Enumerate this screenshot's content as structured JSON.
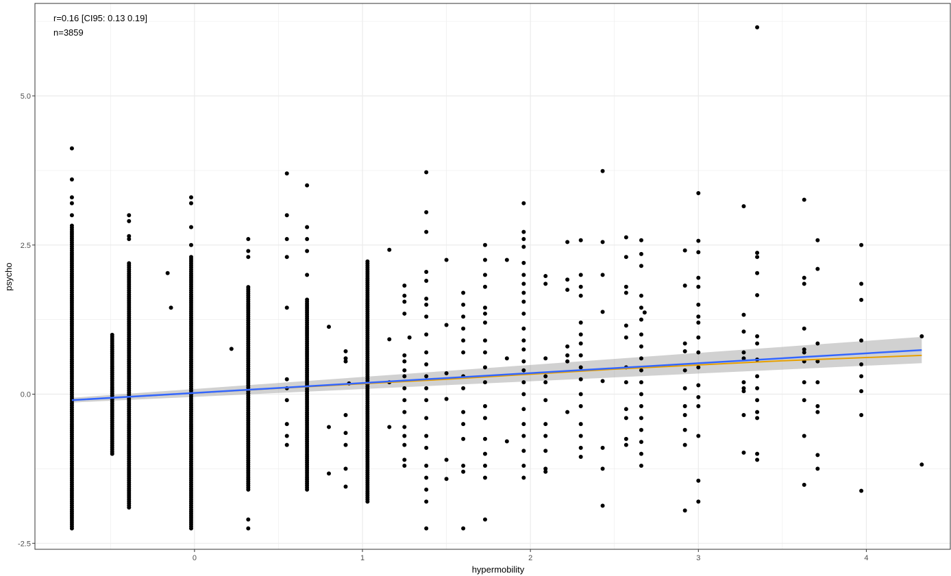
{
  "chart_data": {
    "type": "scatter",
    "xlabel": "hypermobility",
    "ylabel": "psycho",
    "xlim": [
      -0.95,
      4.5
    ],
    "ylim": [
      -2.6,
      6.55
    ],
    "x_ticks": [
      0,
      1,
      2,
      3,
      4
    ],
    "y_ticks": [
      -2.5,
      0.0,
      2.5,
      5.0
    ],
    "x_tick_labels": [
      "0",
      "1",
      "2",
      "3",
      "4"
    ],
    "y_tick_labels": [
      "-2.5",
      "0.0",
      "2.5",
      "5.0"
    ],
    "grid": true,
    "annotations": [
      "r=0.16 [CI95: 0.13 0.19]",
      "n=3859"
    ],
    "colors": {
      "points": "#000000",
      "lm_fit": "#3366ff",
      "loess_fit": "#e69f00",
      "ribbon": "#999999",
      "grid": "#ebebeb",
      "panel_border": "#333333"
    },
    "dense_columns": [
      {
        "x": -0.73,
        "y_min": -2.25,
        "y_max": 2.85,
        "extra": [
          3.0,
          3.2,
          3.3,
          3.6,
          4.12
        ]
      },
      {
        "x": -0.49,
        "y_min": -1.0,
        "y_max": 1.0,
        "extra": []
      },
      {
        "x": -0.39,
        "y_min": -1.9,
        "y_max": 2.2,
        "extra": [
          2.6,
          2.65,
          2.9,
          3.0
        ]
      },
      {
        "x": -0.02,
        "y_min": -2.25,
        "y_max": 2.3,
        "extra": [
          2.5,
          2.8,
          3.2,
          3.3
        ]
      },
      {
        "x": 0.32,
        "y_min": -1.6,
        "y_max": 1.8,
        "extra": [
          2.3,
          2.4,
          2.6,
          -2.1,
          -2.25
        ]
      },
      {
        "x": 0.67,
        "y_min": -1.6,
        "y_max": 1.6,
        "extra": [
          2.0,
          2.4,
          2.6,
          2.8,
          3.5
        ]
      },
      {
        "x": 1.03,
        "y_min": -1.8,
        "y_max": 2.25,
        "extra": []
      }
    ],
    "sparse_columns": [
      {
        "x": 0.55,
        "values": [
          3.7,
          3.0,
          2.6,
          2.3,
          1.45,
          0.25,
          0.1,
          -0.1,
          -0.5,
          -0.7,
          -0.85
        ]
      },
      {
        "x": 0.9,
        "values": [
          0.72,
          0.6,
          0.55,
          -0.35,
          -0.65,
          -0.85,
          -1.25,
          -1.55
        ]
      },
      {
        "x": 1.25,
        "values": [
          1.82,
          1.65,
          1.55,
          1.35,
          0.65,
          0.55,
          0.4,
          0.3,
          0.1,
          -0.1,
          -0.3,
          -0.55,
          -0.7,
          -0.85,
          -1.1,
          -1.2
        ]
      },
      {
        "x": 1.38,
        "values": [
          3.72,
          3.05,
          2.72,
          2.05,
          1.9,
          1.6,
          1.5,
          1.3,
          1.0,
          0.7,
          0.5,
          0.3,
          0.1,
          -0.1,
          -0.4,
          -0.7,
          -0.9,
          -1.2,
          -1.4,
          -1.6,
          -1.8,
          -2.25
        ]
      },
      {
        "x": 1.6,
        "values": [
          1.7,
          1.5,
          1.3,
          1.1,
          0.9,
          0.7,
          0.3,
          0.1,
          -0.3,
          -0.5,
          -0.75,
          -1.2,
          -1.3,
          -2.25
        ]
      },
      {
        "x": 1.73,
        "values": [
          2.5,
          2.25,
          2.0,
          1.8,
          1.45,
          1.35,
          1.2,
          0.9,
          0.7,
          0.45,
          0.2,
          -0.2,
          -0.4,
          -0.75,
          -1.0,
          -1.2,
          -1.4,
          -2.1
        ]
      },
      {
        "x": 1.96,
        "values": [
          3.2,
          2.72,
          2.6,
          2.47,
          2.2,
          2.0,
          1.85,
          1.7,
          1.55,
          1.35,
          1.1,
          0.9,
          0.75,
          0.55,
          0.4,
          0.2,
          0.0,
          -0.25,
          -0.5,
          -0.7,
          -0.95,
          -1.2,
          -1.4
        ]
      },
      {
        "x": 2.09,
        "values": [
          1.98,
          1.85,
          0.6,
          0.3,
          0.2,
          -0.1,
          -0.5,
          -0.7,
          -0.95,
          -1.25,
          -1.3
        ]
      },
      {
        "x": 2.22,
        "values": [
          2.55,
          1.92,
          1.75,
          0.8,
          0.65,
          0.55,
          -0.3
        ]
      },
      {
        "x": 2.3,
        "values": [
          2.58,
          2.0,
          1.8,
          1.65,
          1.2,
          1.0,
          0.85,
          0.65,
          0.45,
          0.25,
          0.0,
          -0.2,
          -0.5,
          -0.7,
          -0.9,
          -1.05
        ]
      },
      {
        "x": 2.43,
        "values": [
          3.74,
          2.55,
          2.0,
          1.38,
          0.22,
          -0.9,
          -1.25,
          -1.87
        ]
      },
      {
        "x": 2.57,
        "values": [
          2.63,
          2.3,
          1.8,
          1.7,
          1.15,
          0.95,
          0.45,
          0.2,
          -0.25,
          -0.4,
          -0.75,
          -0.85
        ]
      },
      {
        "x": 2.66,
        "values": [
          2.58,
          2.35,
          2.15,
          1.65,
          1.45,
          1.25,
          1.0,
          0.8,
          0.6,
          0.4,
          0.2,
          0.0,
          -0.2,
          -0.4,
          -0.6,
          -0.8,
          -1.0,
          -1.2
        ]
      },
      {
        "x": 2.92,
        "values": [
          2.41,
          1.82,
          0.85,
          0.72,
          0.4,
          0.1,
          -0.2,
          -0.35,
          -0.6,
          -0.85,
          -1.95
        ]
      },
      {
        "x": 3.0,
        "values": [
          3.37,
          2.57,
          2.38,
          1.95,
          1.8,
          1.5,
          1.3,
          1.2,
          0.95,
          0.7,
          0.45,
          0.15,
          -0.05,
          -0.2,
          -0.7,
          -1.45,
          -1.8
        ]
      },
      {
        "x": 3.27,
        "values": [
          3.15,
          1.33,
          1.05,
          0.7,
          0.6,
          0.2,
          0.1,
          0.05,
          -0.35,
          -0.98
        ]
      },
      {
        "x": 3.35,
        "values": [
          6.15,
          2.37,
          2.3,
          2.03,
          1.66,
          0.97,
          0.85,
          0.58,
          0.3,
          0.1,
          -0.1,
          -0.3,
          -0.4,
          -1.0,
          -1.1
        ]
      },
      {
        "x": 3.63,
        "values": [
          3.26,
          1.95,
          1.85,
          1.1,
          0.75,
          0.7,
          0.55,
          0.2,
          -0.1,
          -0.7,
          -1.52
        ]
      },
      {
        "x": 3.71,
        "values": [
          2.58,
          2.1,
          0.85,
          0.55,
          0.2,
          -0.2,
          -0.3,
          -1.02,
          -1.25
        ]
      },
      {
        "x": 3.97,
        "values": [
          2.5,
          1.85,
          1.58,
          0.9,
          0.5,
          0.3,
          0.05,
          -0.35,
          -1.62
        ]
      }
    ],
    "isolated_points": [
      {
        "x": -0.16,
        "y": 2.03
      },
      {
        "x": -0.14,
        "y": 1.45
      },
      {
        "x": 0.22,
        "y": 0.76
      },
      {
        "x": 0.8,
        "y": 1.13
      },
      {
        "x": 0.8,
        "y": -0.55
      },
      {
        "x": 0.8,
        "y": -1.33
      },
      {
        "x": 0.92,
        "y": 0.18
      },
      {
        "x": 1.16,
        "y": 2.42
      },
      {
        "x": 1.16,
        "y": 0.92
      },
      {
        "x": 1.16,
        "y": 0.2
      },
      {
        "x": 1.16,
        "y": -0.55
      },
      {
        "x": 1.28,
        "y": 0.95
      },
      {
        "x": 1.5,
        "y": 2.25
      },
      {
        "x": 1.5,
        "y": 1.16
      },
      {
        "x": 1.5,
        "y": 0.35
      },
      {
        "x": 1.5,
        "y": -0.08
      },
      {
        "x": 1.5,
        "y": -1.1
      },
      {
        "x": 1.5,
        "y": -1.42
      },
      {
        "x": 1.86,
        "y": 2.25
      },
      {
        "x": 1.86,
        "y": 0.6
      },
      {
        "x": 1.86,
        "y": -0.79
      },
      {
        "x": 2.68,
        "y": 1.37
      },
      {
        "x": 4.33,
        "y": 0.97
      },
      {
        "x": 4.33,
        "y": -1.18
      }
    ],
    "lm_fit": {
      "x": [
        -0.73,
        4.33
      ],
      "y": [
        -0.1,
        0.74
      ]
    },
    "lm_ribbon": {
      "x": [
        -0.73,
        4.33
      ],
      "lower": [
        -0.14,
        0.52
      ],
      "upper": [
        -0.06,
        0.96
      ]
    },
    "loess_fit": {
      "x": [
        -0.73,
        0.5,
        1.5,
        2.5,
        3.5,
        4.33
      ],
      "y": [
        -0.1,
        0.1,
        0.25,
        0.42,
        0.56,
        0.65
      ]
    }
  }
}
